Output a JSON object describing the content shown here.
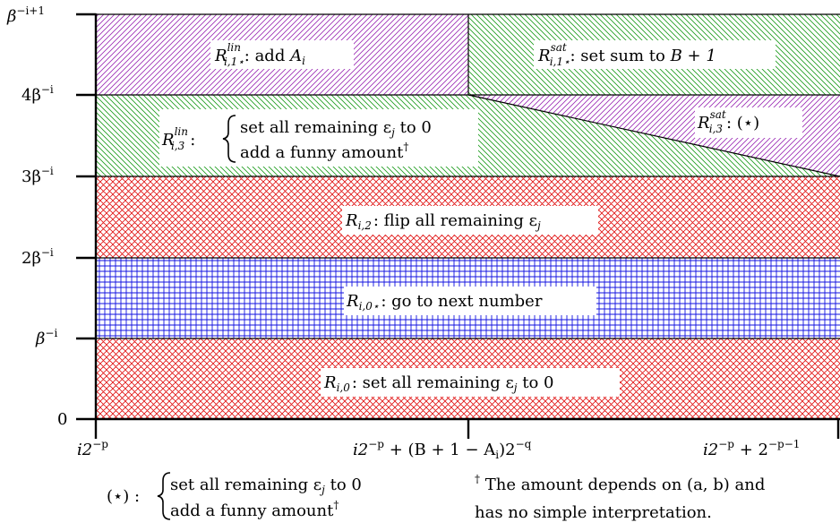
{
  "regions": {
    "r_i1_lin": {
      "base": "R",
      "sup": "lin",
      "sub": "i,1⋆",
      "text": ": add ",
      "a_var": "A",
      "a_sub": "i"
    },
    "r_i1_sat": {
      "base": "R",
      "sup": "sat",
      "sub": "i,1⋆",
      "text": ": set sum to ",
      "expr": "B + 1"
    },
    "r_i3_lin": {
      "base": "R",
      "sup": "lin",
      "sub": "i,3",
      "colon": ":",
      "line1": "set all remaining ε",
      "line1_sub": "j",
      "line1_tail": " to 0",
      "line2": "add a funny amount",
      "line2_mark": "†"
    },
    "r_i3_sat": {
      "base": "R",
      "sup": "sat",
      "sub": "i,3",
      "text": ": (⋆)"
    },
    "r_i2": {
      "base": "R",
      "sub": "i,2",
      "text": ": flip all remaining ε",
      "text_sub": "j"
    },
    "r_i0star": {
      "base": "R",
      "sub": "i,0⋆",
      "text": ": go to next number"
    },
    "r_i0": {
      "base": "R",
      "sub": "i,0",
      "text": ": set all remaining ε",
      "text_sub": "j",
      "tail": " to 0"
    }
  },
  "y_ticks": {
    "t0": "0",
    "t1": {
      "main": "β",
      "sup": "−i"
    },
    "t2": {
      "main": "2β",
      "sup": "−i"
    },
    "t3": {
      "main": "3β",
      "sup": "−i"
    },
    "t4": {
      "main": "4β",
      "sup": "−i"
    },
    "t5": {
      "main": "β",
      "sup": "−i+1"
    }
  },
  "x_ticks": {
    "left": {
      "main": "i2",
      "sup": "−p"
    },
    "mid": {
      "a": "i2",
      "a_sup": "−p",
      "b": " + (B + 1 − A",
      "b_sub": "i",
      "c": ")2",
      "c_sup": "−q"
    },
    "right": {
      "a": "i2",
      "a_sup": "−p",
      "b": " + 2",
      "b_sup": "−p−1"
    }
  },
  "footnotes": {
    "star_label": "(⋆) :",
    "star_line1": "set all remaining ε",
    "star_line1_sub": "j",
    "star_line1_tail": " to 0",
    "star_line2": "add a funny amount",
    "star_line2_mark": "†",
    "dagger_mark": "†",
    "dagger_line1": " The amount depends on (a, b) and",
    "dagger_line2": "has no simple interpretation."
  },
  "colors": {
    "purple": "#9a2ab4",
    "green": "#1a9a1a",
    "red": "#e01010",
    "blue": "#1010e0",
    "axis": "#000000"
  }
}
